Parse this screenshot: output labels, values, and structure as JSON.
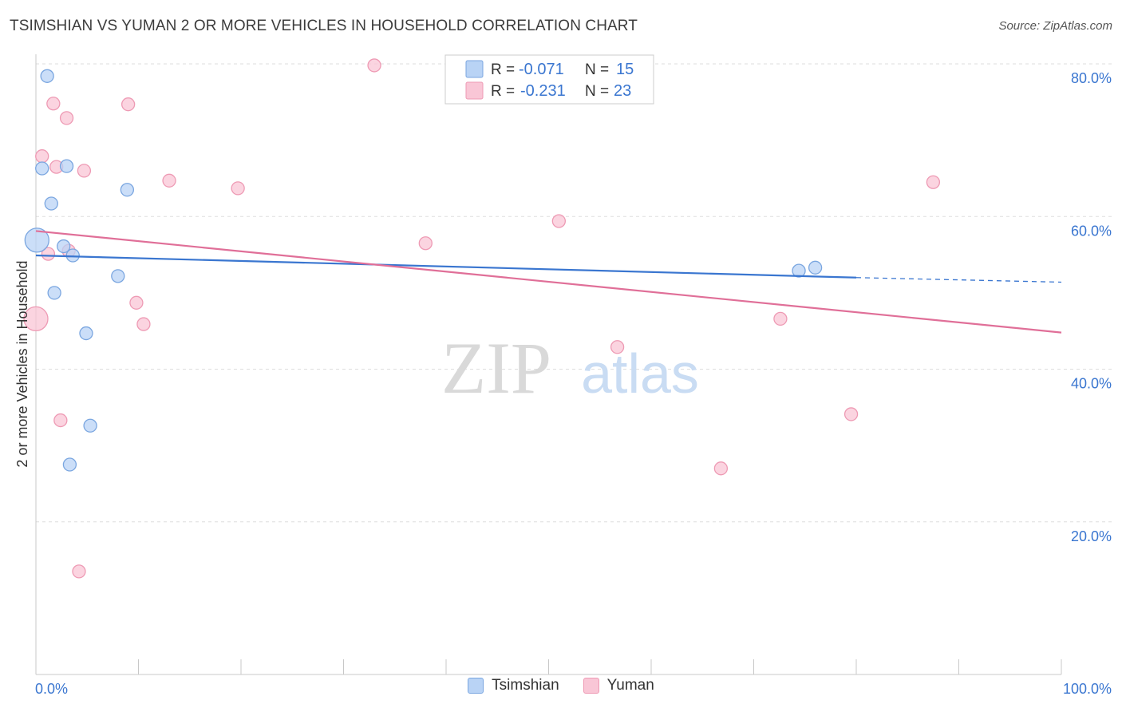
{
  "header": {
    "title": "TSIMSHIAN VS YUMAN 2 OR MORE VEHICLES IN HOUSEHOLD CORRELATION CHART",
    "source": "Source: ZipAtlas.com"
  },
  "watermark": {
    "zip": "ZIP",
    "atlas": "atlas"
  },
  "colors": {
    "tsimshian_fill": "#b9d3f5",
    "tsimshian_stroke": "#7aa6e0",
    "tsimshian_line": "#3a76d0",
    "yuman_fill": "#f9c6d6",
    "yuman_stroke": "#ee9ab4",
    "yuman_line": "#e06f98",
    "axis_text": "#3a76d0",
    "grid": "#dddddd"
  },
  "legend_box": {
    "rows": [
      {
        "r_label": "R =",
        "r_value": "-0.071",
        "n_label": "N =",
        "n_value": "15"
      },
      {
        "r_label": "R =",
        "r_value": "-0.231",
        "n_label": "N =",
        "n_value": "23"
      }
    ]
  },
  "legend_bottom": {
    "series_a": "Tsimshian",
    "series_b": "Yuman"
  },
  "chart_data": {
    "type": "scatter",
    "title": "TSIMSHIAN VS YUMAN 2 OR MORE VEHICLES IN HOUSEHOLD CORRELATION CHART",
    "xlabel": "",
    "ylabel": "2 or more Vehicles in Household",
    "xlim": [
      0,
      100
    ],
    "ylim": [
      0,
      80
    ],
    "x_tick_labels": [
      "0.0%",
      "100.0%"
    ],
    "y_ticks": [
      20,
      40,
      60,
      80
    ],
    "y_tick_labels": [
      "20.0%",
      "40.0%",
      "60.0%",
      "80.0%"
    ],
    "grid": true,
    "series": [
      {
        "name": "Tsimshian",
        "r": -0.071,
        "n": 15,
        "points": [
          {
            "x": 1.1,
            "y": 78.4,
            "big": false
          },
          {
            "x": 0.6,
            "y": 66.3,
            "big": false
          },
          {
            "x": 3.0,
            "y": 66.6,
            "big": false
          },
          {
            "x": 1.5,
            "y": 61.7,
            "big": false
          },
          {
            "x": 8.9,
            "y": 63.5,
            "big": false
          },
          {
            "x": 0.1,
            "y": 56.9,
            "big": true
          },
          {
            "x": 2.7,
            "y": 56.1,
            "big": false
          },
          {
            "x": 3.6,
            "y": 54.9,
            "big": false
          },
          {
            "x": 8.0,
            "y": 52.2,
            "big": false
          },
          {
            "x": 1.8,
            "y": 50.0,
            "big": false
          },
          {
            "x": 4.9,
            "y": 44.7,
            "big": false
          },
          {
            "x": 5.3,
            "y": 32.6,
            "big": false
          },
          {
            "x": 3.3,
            "y": 27.5,
            "big": false
          },
          {
            "x": 74.4,
            "y": 52.9,
            "big": false
          },
          {
            "x": 76.0,
            "y": 53.3,
            "big": false
          }
        ],
        "trend": {
          "x0": 0,
          "y0": 54.9,
          "x1": 80,
          "y1": 52.0,
          "dash_to_x": 100,
          "dash_to_y": 51.4
        }
      },
      {
        "name": "Yuman",
        "r": -0.231,
        "n": 23,
        "points": [
          {
            "x": 33.0,
            "y": 79.8,
            "big": false
          },
          {
            "x": 1.7,
            "y": 74.8,
            "big": false
          },
          {
            "x": 9.0,
            "y": 74.7,
            "big": false
          },
          {
            "x": 3.0,
            "y": 72.9,
            "big": false
          },
          {
            "x": 0.6,
            "y": 67.9,
            "big": false
          },
          {
            "x": 2.0,
            "y": 66.5,
            "big": false
          },
          {
            "x": 4.7,
            "y": 66.0,
            "big": false
          },
          {
            "x": 13.0,
            "y": 64.7,
            "big": false
          },
          {
            "x": 19.7,
            "y": 63.7,
            "big": false
          },
          {
            "x": 87.5,
            "y": 64.5,
            "big": false
          },
          {
            "x": 51.0,
            "y": 59.4,
            "big": false
          },
          {
            "x": 38.0,
            "y": 56.5,
            "big": false
          },
          {
            "x": 1.2,
            "y": 55.1,
            "big": false
          },
          {
            "x": 3.2,
            "y": 55.5,
            "big": false
          },
          {
            "x": 0.0,
            "y": 46.6,
            "big": true
          },
          {
            "x": 9.8,
            "y": 48.7,
            "big": false
          },
          {
            "x": 10.5,
            "y": 45.9,
            "big": false
          },
          {
            "x": 72.6,
            "y": 46.6,
            "big": false
          },
          {
            "x": 56.7,
            "y": 42.9,
            "big": false
          },
          {
            "x": 79.5,
            "y": 34.1,
            "big": false
          },
          {
            "x": 2.4,
            "y": 33.3,
            "big": false
          },
          {
            "x": 66.8,
            "y": 27.0,
            "big": false
          },
          {
            "x": 4.2,
            "y": 13.5,
            "big": false
          }
        ],
        "trend": {
          "x0": 0,
          "y0": 58.1,
          "x1": 100,
          "y1": 44.8
        }
      }
    ]
  }
}
